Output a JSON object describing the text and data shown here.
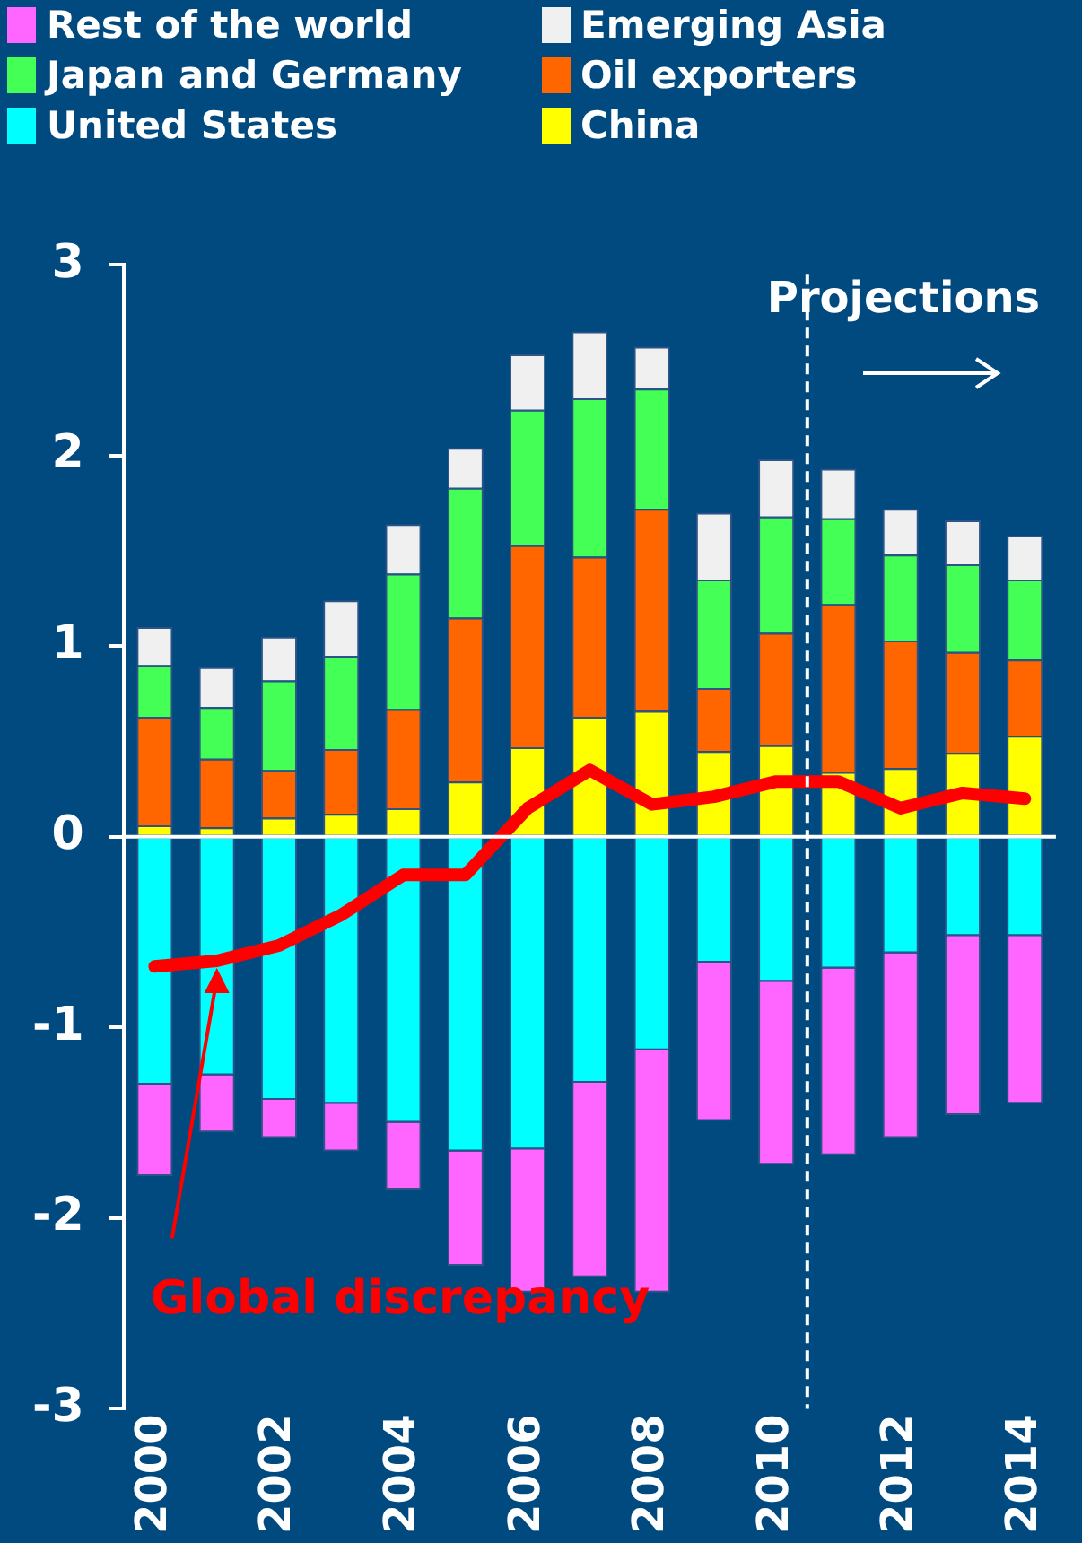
{
  "chart_data": {
    "type": "bar",
    "stacked": true,
    "x": [
      2000,
      2001,
      2002,
      2003,
      2004,
      2005,
      2006,
      2007,
      2008,
      2009,
      2010,
      2011,
      2012,
      2013,
      2014
    ],
    "xlim": [
      1999.5,
      2014.5
    ],
    "xticks": [
      2000,
      2002,
      2004,
      2006,
      2008,
      2010,
      2012,
      2014
    ],
    "ylim": [
      -3,
      3
    ],
    "yticks": [
      -3,
      -2,
      -1,
      0,
      1,
      2,
      3
    ],
    "grid": false,
    "legend": "top",
    "series": [
      {
        "name": "China",
        "color": "#ffff00",
        "values": [
          0.06,
          0.05,
          0.1,
          0.12,
          0.15,
          0.29,
          0.47,
          0.63,
          0.66,
          0.45,
          0.48,
          0.34,
          0.36,
          0.44,
          0.53
        ]
      },
      {
        "name": "United States",
        "color": "#00ffff",
        "values": [
          -1.3,
          -1.25,
          -1.38,
          -1.4,
          -1.5,
          -1.65,
          -1.64,
          -1.29,
          -1.12,
          -0.66,
          -0.76,
          -0.69,
          -0.61,
          -0.52,
          -0.52
        ]
      },
      {
        "name": "Oil exporters",
        "color": "#ff6600",
        "values": [
          0.57,
          0.36,
          0.25,
          0.34,
          0.52,
          0.86,
          1.06,
          0.84,
          1.06,
          0.33,
          0.59,
          0.88,
          0.67,
          0.53,
          0.4
        ]
      },
      {
        "name": "Japan and Germany",
        "color": "#44ff55",
        "values": [
          0.27,
          0.27,
          0.47,
          0.49,
          0.71,
          0.68,
          0.71,
          0.83,
          0.63,
          0.57,
          0.61,
          0.45,
          0.45,
          0.46,
          0.42
        ]
      },
      {
        "name": "Emerging Asia",
        "color": "#f0f0f0",
        "values": [
          0.2,
          0.21,
          0.23,
          0.29,
          0.26,
          0.21,
          0.29,
          0.35,
          0.22,
          0.35,
          0.3,
          0.26,
          0.24,
          0.23,
          0.23
        ]
      },
      {
        "name": "Rest of the world",
        "color": "#ff66ff",
        "values": [
          -0.48,
          -0.3,
          -0.2,
          -0.25,
          -0.35,
          -0.6,
          -0.75,
          -1.02,
          -1.27,
          -0.83,
          -0.96,
          -0.98,
          -0.97,
          -0.94,
          -0.88
        ]
      },
      {
        "name": "Global discrepancy",
        "type": "line",
        "color": "#ff0000",
        "values": [
          -0.68,
          -0.65,
          -0.57,
          -0.41,
          -0.2,
          -0.2,
          0.15,
          0.35,
          0.17,
          0.21,
          0.29,
          0.29,
          0.15,
          0.23,
          0.2
        ]
      }
    ],
    "ref_lines": [
      {
        "axis": "y",
        "value": 0,
        "color": "#ffffff",
        "line_style": "solid"
      },
      {
        "axis": "x",
        "value": 2010.5,
        "label": "Projections",
        "color": "#ffffff",
        "line_style": "dashed"
      }
    ]
  }
}
